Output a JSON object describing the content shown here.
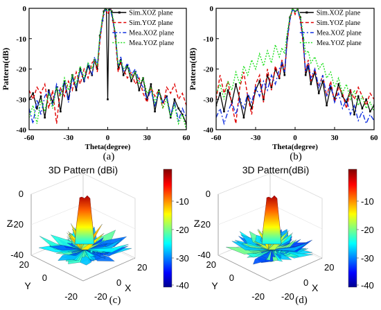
{
  "captions": {
    "a": "(a)",
    "b": "(b)",
    "c": "(c)",
    "d": "(d)"
  },
  "chart_data": [
    {
      "type": "line",
      "panel": "a",
      "xlabel": "Theta(degree)",
      "ylabel": "Pattern(dB)",
      "xlim": [
        -60,
        60
      ],
      "ylim": [
        -40,
        0
      ],
      "xticks": [
        -60,
        -30,
        0,
        30,
        60
      ],
      "yticks": [
        0,
        -10,
        -20,
        -30,
        -40
      ],
      "grid": false,
      "legend_position": "top-right",
      "series": [
        {
          "name": "Sim.XOZ plane",
          "color": "#000000",
          "style": "solid-marker",
          "x": [
            -60,
            -57,
            -54,
            -51,
            -48,
            -45,
            -42,
            -39,
            -36,
            -33,
            -30,
            -27,
            -24,
            -21,
            -18,
            -15,
            -12,
            -10,
            -8,
            -6,
            -4,
            -3,
            -2,
            -1,
            0,
            1,
            2,
            3,
            4,
            6,
            8,
            10,
            12,
            15,
            18,
            21,
            24,
            27,
            30,
            33,
            36,
            39,
            42,
            45,
            48,
            51,
            54,
            57,
            60
          ],
          "y": [
            -30,
            -28,
            -33,
            -29,
            -36,
            -27,
            -31,
            -26,
            -34,
            -24,
            -30,
            -22,
            -27,
            -20,
            -24,
            -19,
            -22,
            -17,
            -20,
            -9,
            -4,
            -1,
            0,
            -0.5,
            -30,
            -0.5,
            0,
            -1,
            -4,
            -9,
            -20,
            -17,
            -22,
            -19,
            -24,
            -21,
            -27,
            -23,
            -30,
            -25,
            -34,
            -27,
            -31,
            -29,
            -36,
            -30,
            -33,
            -35,
            -38
          ]
        },
        {
          "name": "Sim.YOZ plane",
          "color": "#e00000",
          "style": "dash",
          "x": [
            -60,
            -57,
            -54,
            -51,
            -48,
            -45,
            -42,
            -39,
            -36,
            -33,
            -30,
            -27,
            -24,
            -21,
            -18,
            -15,
            -12,
            -10,
            -8,
            -6,
            -4,
            -2,
            0,
            2,
            4,
            6,
            8,
            10,
            12,
            15,
            18,
            21,
            24,
            27,
            30,
            33,
            36,
            39,
            42,
            45,
            48,
            51,
            54,
            57,
            60
          ],
          "y": [
            -27,
            -30,
            -26,
            -28,
            -25,
            -33,
            -27,
            -38,
            -26,
            -29,
            -24,
            -27,
            -21,
            -25,
            -20,
            -23,
            -18,
            -17,
            -21,
            -11,
            -4,
            0,
            -2,
            0,
            -4,
            -11,
            -21,
            -18,
            -20,
            -23,
            -21,
            -25,
            -23,
            -28,
            -31,
            -26,
            -29,
            -27,
            -33,
            -26,
            -28,
            -25,
            -30,
            -28,
            -32
          ]
        },
        {
          "name": "Mea.XOZ plane",
          "color": "#1030e0",
          "style": "dashdot",
          "x": [
            -60,
            -57,
            -54,
            -51,
            -48,
            -45,
            -42,
            -39,
            -36,
            -33,
            -30,
            -27,
            -24,
            -21,
            -18,
            -15,
            -12,
            -10,
            -8,
            -6,
            -4,
            -2,
            0,
            2,
            4,
            6,
            8,
            10,
            12,
            15,
            18,
            21,
            24,
            27,
            30,
            33,
            36,
            39,
            42,
            45,
            48,
            51,
            54,
            57,
            60
          ],
          "y": [
            -33,
            -38,
            -30,
            -35,
            -29,
            -27,
            -32,
            -25,
            -28,
            -24,
            -31,
            -23,
            -26,
            -20,
            -24,
            -18,
            -22,
            -16,
            -19,
            -10,
            -4,
            -0.5,
            -1,
            -0.5,
            -4,
            -10,
            -19,
            -16,
            -21,
            -18,
            -22,
            -20,
            -24,
            -26,
            -30,
            -27,
            -32,
            -28,
            -31,
            -29,
            -35,
            -31,
            -37,
            -33,
            -36
          ]
        },
        {
          "name": "Mea.YOZ plane",
          "color": "#20e020",
          "style": "dot",
          "x": [
            -60,
            -57,
            -54,
            -51,
            -48,
            -45,
            -42,
            -39,
            -36,
            -33,
            -30,
            -27,
            -24,
            -21,
            -18,
            -15,
            -12,
            -10,
            -8,
            -6,
            -4,
            -2,
            0,
            2,
            4,
            6,
            8,
            10,
            12,
            15,
            18,
            21,
            24,
            27,
            30,
            33,
            36,
            39,
            42,
            45,
            48,
            51,
            54,
            57,
            60
          ],
          "y": [
            -36,
            -32,
            -38,
            -30,
            -34,
            -28,
            -33,
            -26,
            -29,
            -23,
            -27,
            -22,
            -25,
            -19,
            -23,
            -18,
            -20,
            -17,
            -19,
            -9,
            -3,
            0,
            -1,
            0,
            -3,
            -9,
            -19,
            -17,
            -20,
            -19,
            -23,
            -21,
            -25,
            -23,
            -28,
            -26,
            -31,
            -27,
            -33,
            -30,
            -36,
            -32,
            -38,
            -35,
            -40
          ]
        }
      ]
    },
    {
      "type": "line",
      "panel": "b",
      "xlabel": "Theta(degree)",
      "ylabel": "Pattern(dB)",
      "xlim": [
        -60,
        60
      ],
      "ylim": [
        -40,
        0
      ],
      "xticks": [
        -60,
        -30,
        0,
        30,
        60
      ],
      "yticks": [
        0,
        -10,
        -20,
        -30,
        -40
      ],
      "grid": false,
      "legend_position": "top-right",
      "series": [
        {
          "name": "Sim.XOZ plane",
          "color": "#000000",
          "style": "solid-marker",
          "x": [
            -60,
            -57,
            -54,
            -51,
            -48,
            -45,
            -42,
            -39,
            -36,
            -33,
            -30,
            -27,
            -24,
            -21,
            -18,
            -15,
            -12,
            -10,
            -8,
            -6,
            -4,
            -2,
            0,
            2,
            4,
            6,
            8,
            10,
            12,
            15,
            18,
            21,
            24,
            27,
            30,
            33,
            36,
            39,
            42,
            45,
            48,
            51,
            54,
            57,
            60
          ],
          "y": [
            -32,
            -28,
            -34,
            -27,
            -31,
            -25,
            -30,
            -36,
            -29,
            -33,
            -27,
            -24,
            -30,
            -22,
            -26,
            -20,
            -23,
            -18,
            -22,
            -10,
            -3,
            -0.5,
            -1,
            -0.5,
            -3,
            -10,
            -22,
            -19,
            -25,
            -21,
            -28,
            -24,
            -32,
            -26,
            -30,
            -25,
            -29,
            -31,
            -27,
            -35,
            -29,
            -33,
            -30,
            -34,
            -32
          ]
        },
        {
          "name": "Sim.YOZ plane",
          "color": "#e00000",
          "style": "dash",
          "x": [
            -60,
            -57,
            -54,
            -51,
            -48,
            -45,
            -42,
            -39,
            -36,
            -33,
            -30,
            -27,
            -24,
            -21,
            -18,
            -15,
            -12,
            -10,
            -8,
            -6,
            -4,
            -2,
            0,
            2,
            4,
            6,
            8,
            10,
            12,
            15,
            18,
            21,
            24,
            27,
            30,
            33,
            36,
            39,
            42,
            45,
            48,
            51,
            54,
            57,
            60
          ],
          "y": [
            -30,
            -22,
            -28,
            -24,
            -32,
            -38,
            -26,
            -21,
            -29,
            -35,
            -25,
            -22,
            -31,
            -20,
            -27,
            -19,
            -23,
            -17,
            -21,
            -11,
            -4,
            0,
            -2,
            0,
            -4,
            -11,
            -21,
            -17,
            -24,
            -20,
            -26,
            -22,
            -29,
            -24,
            -31,
            -26,
            -28,
            -33,
            -27,
            -30,
            -26,
            -29,
            -32,
            -28,
            -30
          ]
        },
        {
          "name": "Mea.XOZ plane",
          "color": "#1030e0",
          "style": "dashdot",
          "x": [
            -60,
            -57,
            -54,
            -51,
            -48,
            -45,
            -42,
            -39,
            -36,
            -33,
            -30,
            -27,
            -24,
            -21,
            -18,
            -15,
            -12,
            -10,
            -8,
            -6,
            -4,
            -2,
            0,
            2,
            4,
            6,
            8,
            10,
            12,
            15,
            18,
            21,
            24,
            27,
            30,
            33,
            36,
            39,
            42,
            45,
            48,
            51,
            54,
            57,
            60
          ],
          "y": [
            -36,
            -33,
            -38,
            -34,
            -31,
            -35,
            -30,
            -33,
            -28,
            -31,
            -26,
            -29,
            -24,
            -27,
            -22,
            -25,
            -20,
            -18,
            -21,
            -10,
            -4,
            -0.5,
            -1,
            -0.5,
            -4,
            -10,
            -21,
            -18,
            -23,
            -20,
            -26,
            -22,
            -29,
            -25,
            -31,
            -28,
            -33,
            -30,
            -35,
            -32,
            -37,
            -34,
            -38,
            -35,
            -37
          ]
        },
        {
          "name": "Mea.YOZ plane",
          "color": "#20e020",
          "style": "dot",
          "x": [
            -60,
            -57,
            -54,
            -51,
            -48,
            -45,
            -42,
            -39,
            -36,
            -33,
            -30,
            -27,
            -24,
            -21,
            -18,
            -15,
            -12,
            -10,
            -8,
            -6,
            -4,
            -2,
            0,
            2,
            4,
            6,
            8,
            10,
            12,
            15,
            18,
            21,
            24,
            27,
            30,
            33,
            36,
            39,
            42,
            45,
            48,
            51,
            54,
            57,
            60
          ],
          "y": [
            -28,
            -25,
            -30,
            -24,
            -27,
            -21,
            -25,
            -19,
            -22,
            -17,
            -20,
            -15,
            -19,
            -14,
            -18,
            -12,
            -16,
            -13,
            -15,
            -8,
            -3,
            0,
            -1,
            0,
            -3,
            -8,
            -15,
            -14,
            -18,
            -16,
            -20,
            -18,
            -23,
            -21,
            -26,
            -23,
            -28,
            -25,
            -30,
            -27,
            -32,
            -29,
            -33,
            -31,
            -34
          ]
        }
      ]
    },
    {
      "type": "surface3d",
      "panel": "c",
      "title": "3D Pattern (dBi)",
      "axis_labels": {
        "x": "X",
        "y": "Y",
        "z": "Z"
      },
      "z_ticks": [
        "0",
        "-20",
        "-40"
      ],
      "y_ticks": [
        "20",
        "0",
        "-20"
      ],
      "x_ticks": [
        "-20",
        "0",
        "20"
      ],
      "colorbar_ticks": [
        "-10",
        "-20",
        "-30",
        "-40"
      ],
      "colormap": "jet",
      "peak_dbi": 0
    },
    {
      "type": "surface3d",
      "panel": "d",
      "title": "3D Pattern(dBi)",
      "axis_labels": {
        "x": "X",
        "y": "Y",
        "z": "Z"
      },
      "z_ticks": [
        "0",
        "-20",
        "-40"
      ],
      "y_ticks": [
        "20",
        "0",
        "-20"
      ],
      "x_ticks": [
        "-20",
        "0",
        "20"
      ],
      "colorbar_ticks": [
        "-10",
        "-20",
        "-30",
        "-40"
      ],
      "colormap": "jet",
      "peak_dbi": 0
    }
  ]
}
